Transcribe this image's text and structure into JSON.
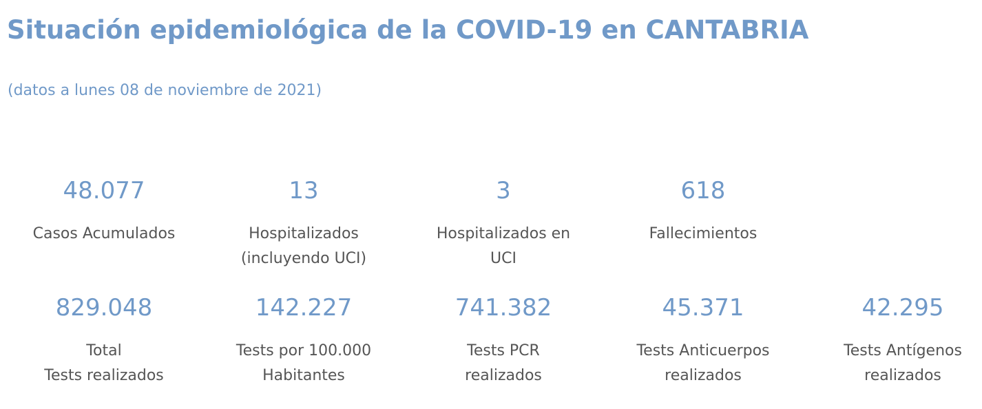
{
  "header": {
    "title": "Situación epidemiológica de la COVID-19 en CANTABRIA",
    "subtitle": "(datos a lunes 08 de noviembre de 2021)"
  },
  "stats_row1": [
    {
      "value": "48.077",
      "label": "Casos Acumulados"
    },
    {
      "value": "13",
      "label": "Hospitalizados\n(incluyendo UCI)"
    },
    {
      "value": "3",
      "label": "Hospitalizados en\nUCI"
    },
    {
      "value": "618",
      "label": "Fallecimientos"
    }
  ],
  "stats_row2": [
    {
      "value": "829.048",
      "label": "Total\nTests realizados"
    },
    {
      "value": "142.227",
      "label": "Tests por 100.000\nHabitantes"
    },
    {
      "value": "741.382",
      "label": "Tests PCR\nrealizados"
    },
    {
      "value": "45.371",
      "label": "Tests Anticuerpos\nrealizados"
    },
    {
      "value": "42.295",
      "label": "Tests Antígenos\nrealizados"
    }
  ],
  "colors": {
    "accent": "#7099c8",
    "label_text": "#555555",
    "background": "#ffffff"
  }
}
